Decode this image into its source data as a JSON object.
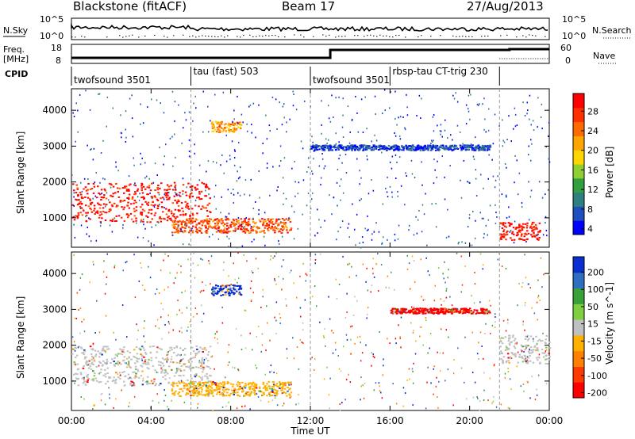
{
  "header": {
    "station": "Blackstone (fitACF)",
    "beam": "Beam 17",
    "date": "27/Aug/2013"
  },
  "top_panels": {
    "nsky_label": "N.Sky",
    "nsky_ticks": [
      "10^5",
      "10^0"
    ],
    "nsearch_label": "N.Search",
    "nsearch_ticks": [
      "10^5",
      "10^0"
    ],
    "freq_label": "Freq.",
    "freq_unit": "[MHz]",
    "freq_ticks": [
      "18",
      "8"
    ],
    "nave_label": "Nave",
    "nave_ticks": [
      "60",
      "0"
    ],
    "cpid_label": "CPID"
  },
  "cpid_segments": [
    {
      "label": "twofsound 3501",
      "start_hour": 0,
      "end_hour": 6
    },
    {
      "label": "tau (fast) 503",
      "start_hour": 6,
      "end_hour": 12
    },
    {
      "label": "twofsound 3501",
      "start_hour": 12,
      "end_hour": 16
    },
    {
      "label": "rbsp-tau CT-trig 230",
      "start_hour": 16,
      "end_hour": 21.5
    }
  ],
  "x_axis": {
    "label": "Time UT",
    "ticks": [
      "00:00",
      "04:00",
      "08:00",
      "12:00",
      "16:00",
      "20:00",
      "00:00"
    ]
  },
  "chart_data": [
    {
      "type": "heatmap",
      "title": "",
      "xlabel": "Time UT",
      "ylabel": "Slant Range [km]",
      "xlim_hours": [
        0,
        24
      ],
      "ylim": [
        180,
        4600
      ],
      "yticks": [
        1000,
        2000,
        3000,
        4000
      ],
      "colorbar": {
        "label": "Power [dB]",
        "ticks": [
          "28",
          "24",
          "20",
          "16",
          "12",
          "8",
          "4"
        ],
        "colors": [
          "#0000ff",
          "#1f4fbf",
          "#2f7f7f",
          "#32a040",
          "#8fd030",
          "#ffd700",
          "#ffa500",
          "#ff6a00",
          "#ff3000",
          "#ff0000"
        ]
      },
      "features": [
        {
          "name": "near-range band",
          "hours": [
            0,
            7
          ],
          "range_km": [
            900,
            2000
          ],
          "power_db": 28
        },
        {
          "name": "mid band",
          "hours": [
            5,
            11
          ],
          "range_km": [
            600,
            1000
          ],
          "power_db": 24
        },
        {
          "name": "patch",
          "hours": [
            7,
            8.5
          ],
          "range_km": [
            3400,
            3700
          ],
          "power_db": 20
        },
        {
          "name": "late evening echo",
          "hours": [
            21.5,
            23.5
          ],
          "range_km": [
            400,
            900
          ],
          "power_db": 28
        },
        {
          "name": "far range band",
          "hours": [
            12,
            21
          ],
          "range_km": [
            2900,
            3050
          ],
          "power_db": 4
        }
      ]
    },
    {
      "type": "heatmap",
      "title": "",
      "xlabel": "Time UT",
      "ylabel": "Slant Range [km]",
      "xlim_hours": [
        0,
        24
      ],
      "ylim": [
        180,
        4600
      ],
      "yticks": [
        1000,
        2000,
        3000,
        4000
      ],
      "colorbar": {
        "label": "Velocity [m s^-1]",
        "ticks": [
          "200",
          "100",
          "50",
          "15",
          "-15",
          "-50",
          "-100",
          "-200"
        ],
        "colors": [
          "#ff0000",
          "#ff3a00",
          "#ff8000",
          "#ffb000",
          "#c0c0c0",
          "#7fd040",
          "#3aa03a",
          "#2f6fbf",
          "#0a2fd0"
        ]
      },
      "features": [
        {
          "name": "ground scatter",
          "hours": [
            0,
            7
          ],
          "range_km": [
            900,
            2000
          ],
          "velocity": 0
        },
        {
          "name": "mid band",
          "hours": [
            5,
            11
          ],
          "range_km": [
            600,
            1000
          ],
          "velocity": -50
        },
        {
          "name": "patch",
          "hours": [
            7,
            8.5
          ],
          "range_km": [
            3400,
            3700
          ],
          "velocity": 200
        },
        {
          "name": "far range band",
          "hours": [
            16,
            21
          ],
          "range_km": [
            2900,
            3050
          ],
          "velocity": -200
        },
        {
          "name": "late ground scatter",
          "hours": [
            21.5,
            24
          ],
          "range_km": [
            1500,
            2300
          ],
          "velocity": 0
        }
      ]
    }
  ]
}
